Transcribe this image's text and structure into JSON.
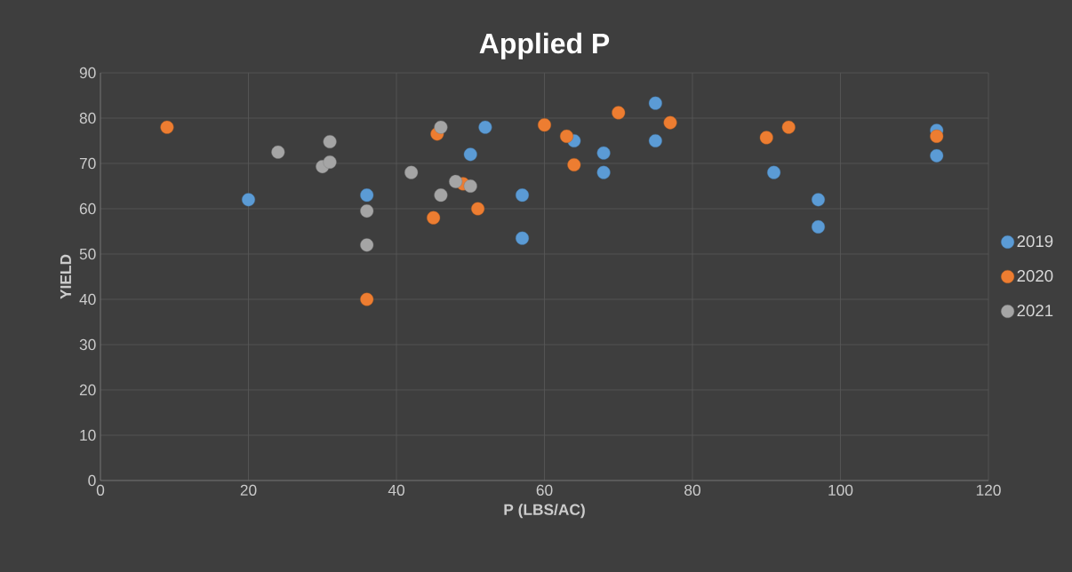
{
  "chart_data": {
    "type": "scatter",
    "title": "Applied P",
    "xlabel": "P (LBS/AC)",
    "ylabel": "YIELD",
    "xlim": [
      0,
      120
    ],
    "xticks": [
      0,
      20,
      40,
      60,
      80,
      100,
      120
    ],
    "ylim": [
      0,
      90
    ],
    "yticks": [
      0,
      10,
      20,
      30,
      40,
      50,
      60,
      70,
      80,
      90
    ],
    "grid": true,
    "legend": "right",
    "marker": "circle",
    "series": [
      {
        "name": "2019",
        "color": "#5b9bd5",
        "x": [
          20,
          36,
          50,
          52,
          57,
          57,
          64,
          68,
          68,
          75,
          75,
          91,
          97,
          97,
          113,
          113
        ],
        "values": [
          62,
          63,
          72,
          78,
          63,
          53.5,
          75,
          72.3,
          68,
          83.3,
          75,
          68,
          62,
          56,
          77.3,
          71.7
        ]
      },
      {
        "name": "2020",
        "color": "#ed7d31",
        "x": [
          9,
          36,
          45.5,
          45,
          49,
          51,
          60,
          63,
          64,
          70,
          77,
          90,
          93,
          113
        ],
        "values": [
          78,
          40,
          76.5,
          58,
          65.5,
          60,
          78.5,
          76,
          69.7,
          81.2,
          79,
          75.7,
          78,
          76
        ]
      },
      {
        "name": "2021",
        "color": "#a5a5a5",
        "x": [
          24,
          30,
          31,
          31,
          36,
          36,
          42,
          46,
          46,
          48,
          50
        ],
        "values": [
          72.5,
          69.3,
          74.8,
          70.3,
          59.5,
          52,
          68,
          78,
          63,
          66,
          65
        ]
      }
    ]
  }
}
